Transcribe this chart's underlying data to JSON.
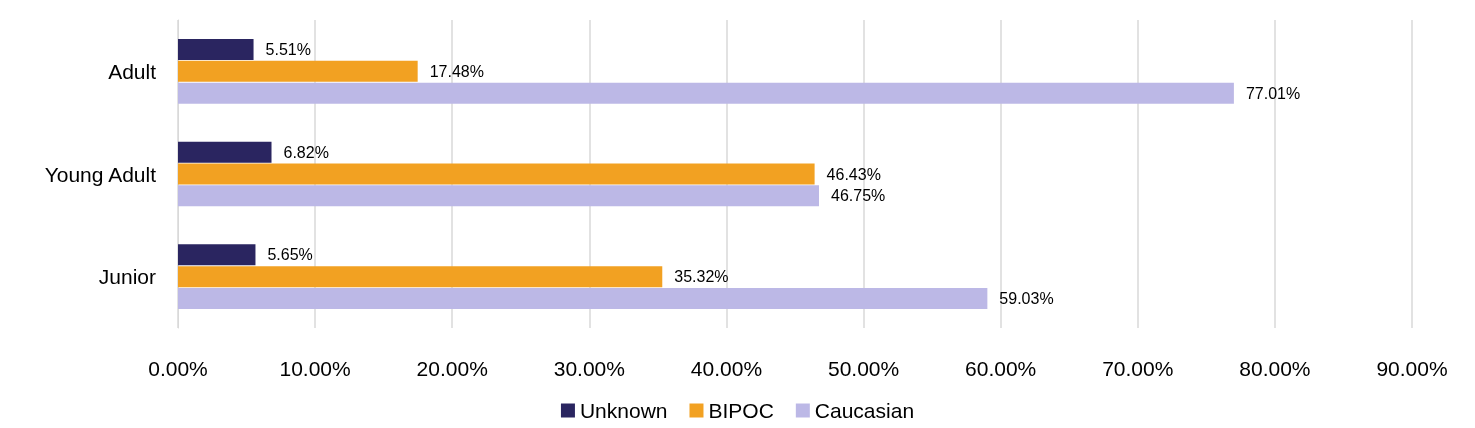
{
  "chart_data": {
    "type": "bar",
    "orientation": "horizontal",
    "categories": [
      "Adult",
      "Young Adult",
      "Junior"
    ],
    "series": [
      {
        "name": "Unknown",
        "color": "#2a2560",
        "values": [
          5.51,
          6.82,
          5.65
        ],
        "value_labels": [
          "5.51%",
          "6.82%",
          "5.65%"
        ]
      },
      {
        "name": "BIPOC",
        "color": "#f2a122",
        "values": [
          17.48,
          46.43,
          35.32
        ],
        "value_labels": [
          "17.48%",
          "46.43%",
          "35.32%"
        ]
      },
      {
        "name": "Caucasian",
        "color": "#bcb8e6",
        "values": [
          77.01,
          46.75,
          59.03
        ],
        "value_labels": [
          "77.01%",
          "46.75%",
          "59.03%"
        ]
      }
    ],
    "xlim": [
      0,
      90
    ],
    "xticks": [
      {
        "value": 0,
        "label": "0.00%"
      },
      {
        "value": 10,
        "label": "10.00%"
      },
      {
        "value": 20,
        "label": "20.00%"
      },
      {
        "value": 30,
        "label": "30.00%"
      },
      {
        "value": 40,
        "label": "40.00%"
      },
      {
        "value": 50,
        "label": "50.00%"
      },
      {
        "value": 60,
        "label": "60.00%"
      },
      {
        "value": 70,
        "label": "70.00%"
      },
      {
        "value": 80,
        "label": "80.00%"
      },
      {
        "value": 90,
        "label": "90.00%"
      }
    ],
    "grid": "x",
    "legend": "bottom"
  }
}
